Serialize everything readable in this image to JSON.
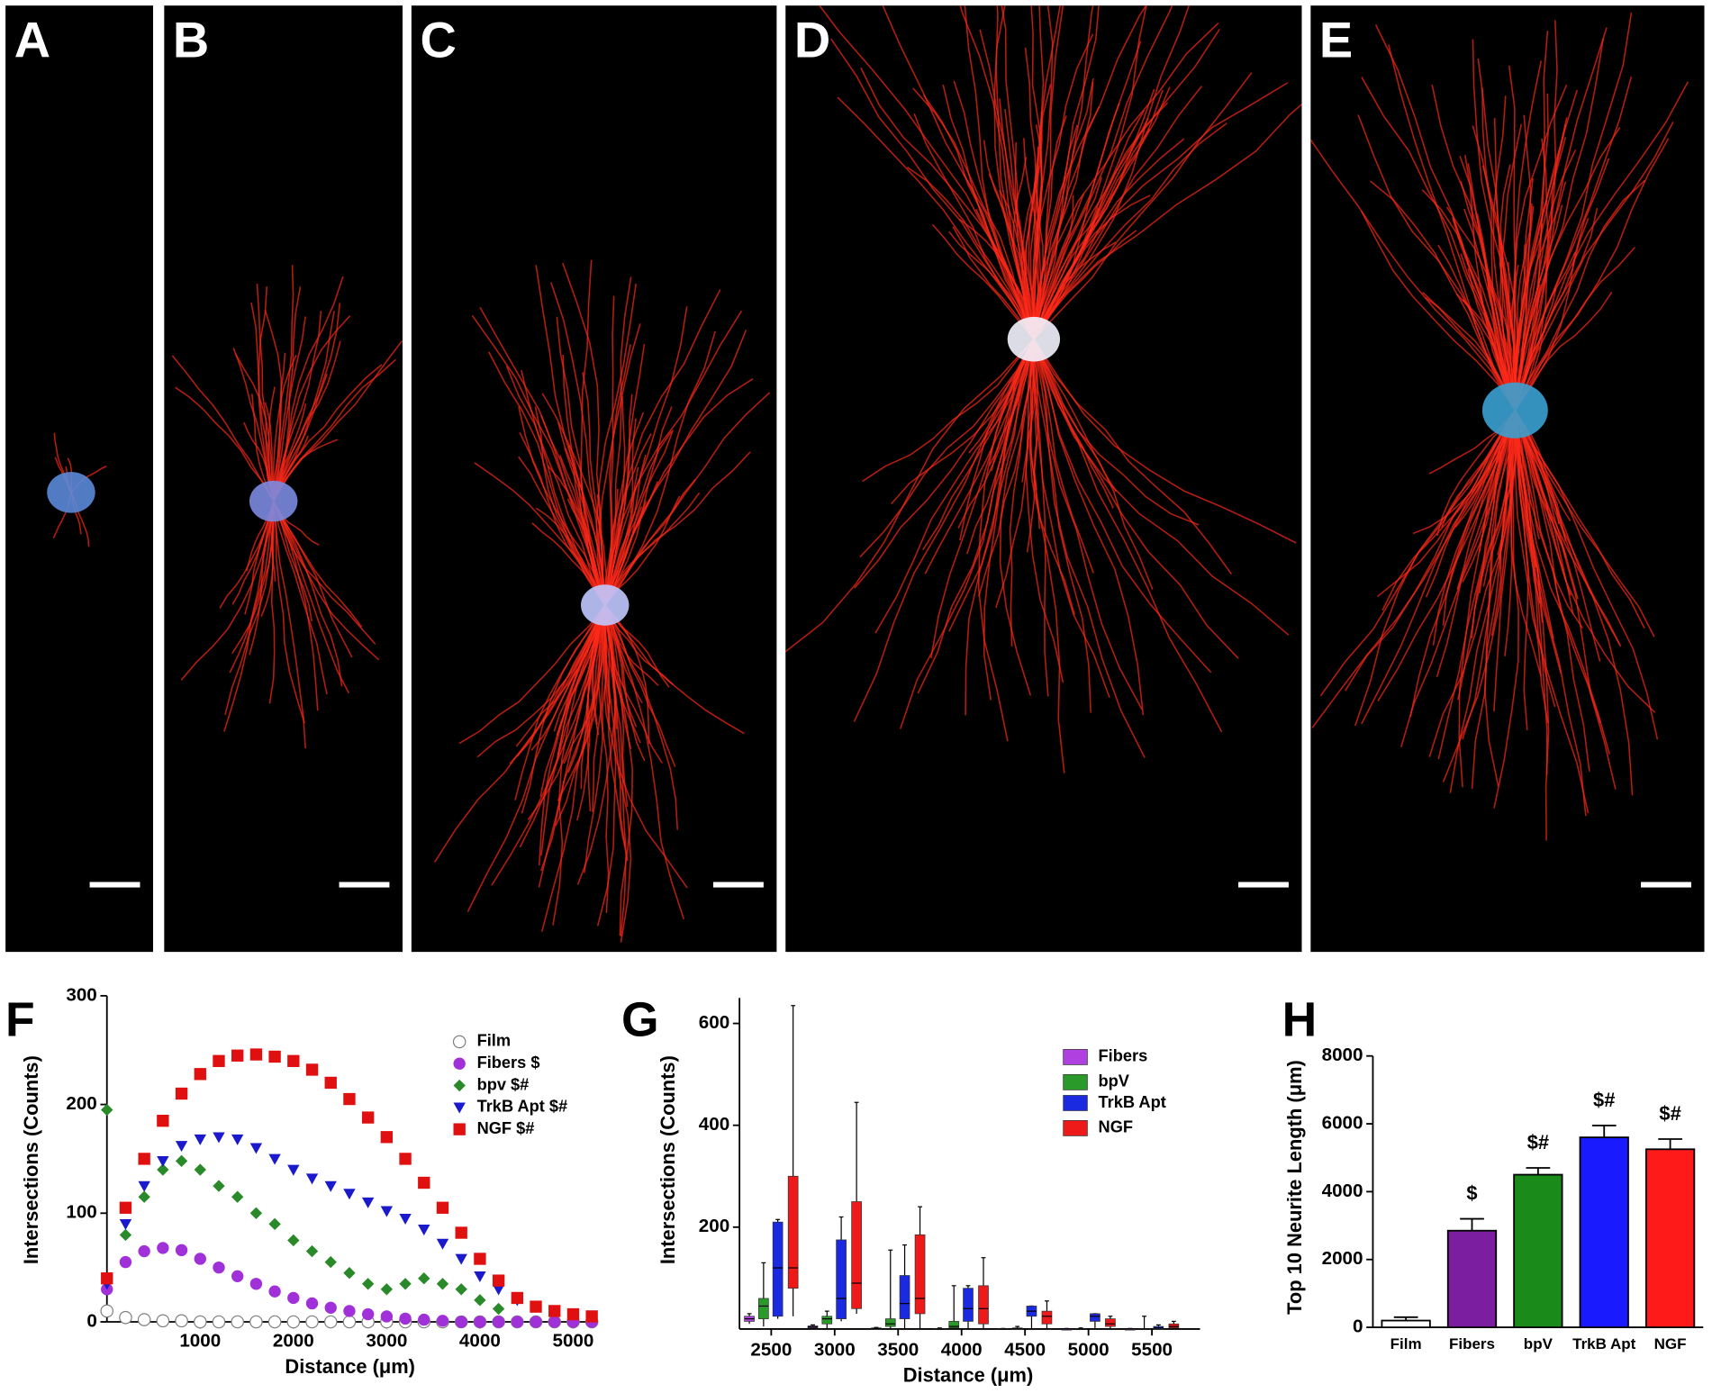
{
  "panels": [
    {
      "label": "A"
    },
    {
      "label": "B"
    },
    {
      "label": "C"
    },
    {
      "label": "D"
    },
    {
      "label": "E"
    }
  ],
  "chart_data": [
    {
      "type": "scatter",
      "panel": "F",
      "xlabel": "Distance (μm)",
      "ylabel": "Intersections (Counts)",
      "x": [
        0,
        200,
        400,
        600,
        800,
        1000,
        1200,
        1400,
        1600,
        1800,
        2000,
        2200,
        2400,
        2600,
        2800,
        3000,
        3200,
        3400,
        3600,
        3800,
        4000,
        4200,
        4400,
        4600,
        4800,
        5000,
        5200
      ],
      "xlim": [
        0,
        5200
      ],
      "ylim": [
        0,
        300
      ],
      "xticks": [
        1000,
        2000,
        3000,
        4000,
        5000
      ],
      "yticks": [
        0,
        100,
        200,
        300
      ],
      "series": [
        {
          "name": "Film",
          "color": "#ffffff",
          "edgecolor": "#808080",
          "marker": "circle",
          "values": [
            10,
            4,
            2,
            1,
            1,
            0,
            0,
            0,
            0,
            0,
            0,
            0,
            0,
            0,
            0,
            0,
            0,
            0,
            0,
            0,
            0,
            0,
            0,
            0,
            0,
            0,
            0
          ]
        },
        {
          "name": "Fibers $",
          "color": "#a030d8",
          "marker": "circle",
          "values": [
            30,
            55,
            65,
            68,
            66,
            58,
            50,
            42,
            35,
            28,
            22,
            17,
            13,
            10,
            7,
            5,
            3,
            2,
            1,
            0,
            0,
            0,
            0,
            0,
            0,
            0,
            0
          ]
        },
        {
          "name": "bpv  $#",
          "color": "#2a8a2a",
          "marker": "diamond",
          "values": [
            195,
            80,
            115,
            140,
            148,
            140,
            125,
            115,
            100,
            90,
            75,
            65,
            55,
            45,
            35,
            30,
            35,
            40,
            35,
            30,
            20,
            12,
            null,
            null,
            null,
            null,
            null
          ]
        },
        {
          "name": "TrkB Apt $#",
          "color": "#1a1acc",
          "marker": "triangle",
          "values": [
            35,
            90,
            125,
            148,
            162,
            168,
            170,
            168,
            160,
            150,
            140,
            132,
            125,
            118,
            110,
            102,
            95,
            85,
            72,
            58,
            42,
            30,
            20,
            14,
            10,
            8,
            6
          ]
        },
        {
          "name": "NGF $#",
          "color": "#e01010",
          "marker": "square",
          "values": [
            40,
            105,
            150,
            185,
            210,
            228,
            240,
            245,
            246,
            244,
            240,
            232,
            220,
            205,
            188,
            170,
            150,
            128,
            105,
            82,
            58,
            38,
            22,
            14,
            10,
            7,
            5
          ]
        }
      ]
    },
    {
      "type": "box",
      "panel": "G",
      "xlabel": "Distance (μm)",
      "ylabel": "Intersections (Counts)",
      "categories": [
        "2500",
        "3000",
        "3500",
        "4000",
        "4500",
        "5000",
        "5500"
      ],
      "ylim": [
        0,
        650
      ],
      "yticks": [
        200,
        400,
        600
      ],
      "series": [
        {
          "name": "Fibers",
          "color": "#b040e0",
          "values": [
            [
              10,
              15,
              20,
              25,
              30
            ],
            [
              0,
              2,
              4,
              6,
              8
            ],
            [
              0,
              0,
              1,
              2,
              3
            ],
            [
              0,
              0,
              0,
              1,
              2
            ],
            [
              0,
              0,
              0,
              1,
              1
            ],
            [
              0,
              0,
              0,
              0,
              1
            ],
            [
              0,
              0,
              0,
              0,
              1
            ]
          ]
        },
        {
          "name": "bpV",
          "color": "#2a9a2a",
          "values": [
            [
              5,
              20,
              45,
              60,
              130
            ],
            [
              0,
              10,
              20,
              25,
              35
            ],
            [
              0,
              5,
              10,
              20,
              155
            ],
            [
              0,
              2,
              5,
              15,
              85
            ],
            [
              0,
              0,
              1,
              2,
              5
            ],
            [
              0,
              0,
              0,
              1,
              2
            ],
            [
              0,
              0,
              0,
              1,
              25
            ]
          ]
        },
        {
          "name": "TrkB Apt",
          "color": "#1a2ae0",
          "values": [
            [
              20,
              25,
              120,
              210,
              215
            ],
            [
              15,
              20,
              60,
              175,
              220
            ],
            [
              0,
              20,
              50,
              105,
              165
            ],
            [
              0,
              15,
              40,
              80,
              85
            ],
            [
              0,
              25,
              35,
              45,
              45
            ],
            [
              0,
              15,
              25,
              30,
              30
            ],
            [
              0,
              0,
              2,
              5,
              8
            ]
          ]
        },
        {
          "name": "NGF",
          "color": "#ee1a1a",
          "values": [
            [
              25,
              80,
              120,
              300,
              635
            ],
            [
              30,
              40,
              90,
              250,
              445
            ],
            [
              0,
              30,
              60,
              185,
              240
            ],
            [
              0,
              10,
              40,
              85,
              140
            ],
            [
              0,
              10,
              25,
              35,
              55
            ],
            [
              0,
              5,
              10,
              20,
              25
            ],
            [
              0,
              2,
              5,
              10,
              15
            ]
          ]
        }
      ]
    },
    {
      "type": "bar",
      "panel": "H",
      "ylabel": "Top 10 Neurite Length (μm)",
      "categories": [
        "Film",
        "Fibers",
        "bpV",
        "TrkB Apt",
        "NGF"
      ],
      "values": [
        200,
        2850,
        4500,
        5600,
        5250
      ],
      "errors": [
        100,
        350,
        200,
        350,
        300
      ],
      "colors": [
        "#ffffff",
        "#7b1fa0",
        "#1a8a1a",
        "#1a1aff",
        "#ff1a1a"
      ],
      "significance": [
        null,
        "$",
        "$#",
        "$#",
        "$#"
      ],
      "ylim": [
        0,
        8000
      ],
      "yticks": [
        0,
        2000,
        4000,
        6000,
        8000
      ]
    }
  ]
}
